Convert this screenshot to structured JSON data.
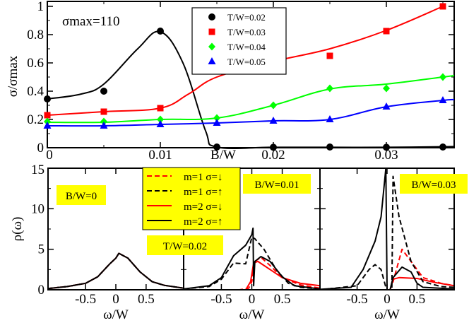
{
  "chart_data": [
    {
      "type": "scatter",
      "ylabel": "σ/σmax",
      "xlabel": "B/W",
      "annotation": "σmax=110",
      "xlim": [
        0,
        0.036
      ],
      "ylim": [
        0,
        1.03
      ],
      "xticks": [
        "0",
        "0.01",
        "0.02",
        "0.03"
      ],
      "xtick_values": [
        0,
        0.01,
        0.02,
        0.03
      ],
      "yticks": [
        "0",
        "0.2",
        "0.4",
        "0.6",
        "0.8",
        "1"
      ],
      "ytick_values": [
        0,
        0.2,
        0.4,
        0.6,
        0.8,
        1
      ],
      "legend_position": "top-center",
      "x": [
        0,
        0.005,
        0.01,
        0.015,
        0.02,
        0.025,
        0.03,
        0.035
      ],
      "series": [
        {
          "name": "T/W=0.02",
          "color": "#000000",
          "marker": "circle",
          "values": [
            0.345,
            0.4,
            0.825,
            0.005,
            0.003,
            0.005,
            0.003,
            0.005
          ],
          "fit_x": [
            0,
            0.003,
            0.005,
            0.008,
            0.01,
            0.012,
            0.014,
            0.015,
            0.02,
            0.025,
            0.03,
            0.036
          ],
          "fit": [
            0.345,
            0.38,
            0.45,
            0.7,
            0.82,
            0.6,
            0.12,
            0.005,
            0.003,
            0.003,
            0.003,
            0.008
          ]
        },
        {
          "name": "T/W=0.03",
          "color": "#ff0000",
          "marker": "square",
          "values": [
            0.23,
            0.255,
            0.28,
            0.57,
            0.61,
            0.65,
            0.825,
            1.0
          ],
          "fit_x": [
            0,
            0.005,
            0.01,
            0.0125,
            0.015,
            0.02,
            0.025,
            0.03,
            0.035
          ],
          "fit": [
            0.23,
            0.255,
            0.28,
            0.38,
            0.5,
            0.61,
            0.7,
            0.83,
            1.0
          ]
        },
        {
          "name": "T/W=0.04",
          "color": "#00ff00",
          "marker": "diamond",
          "values": [
            0.185,
            0.185,
            0.2,
            0.21,
            0.3,
            0.42,
            0.42,
            0.5
          ],
          "fit_x": [
            0,
            0.005,
            0.01,
            0.015,
            0.02,
            0.025,
            0.03,
            0.035,
            0.036
          ],
          "fit": [
            0.18,
            0.18,
            0.2,
            0.21,
            0.3,
            0.415,
            0.45,
            0.5,
            0.51
          ]
        },
        {
          "name": "T/W=0.05",
          "color": "#0000ff",
          "marker": "triangle",
          "values": [
            0.155,
            0.155,
            0.165,
            0.175,
            0.19,
            0.2,
            0.29,
            0.335
          ],
          "fit_x": [
            0,
            0.005,
            0.01,
            0.015,
            0.02,
            0.025,
            0.03,
            0.035,
            0.036
          ],
          "fit": [
            0.155,
            0.155,
            0.165,
            0.175,
            0.19,
            0.2,
            0.29,
            0.335,
            0.34
          ]
        }
      ]
    },
    {
      "type": "line",
      "ylabel": "ρ(ω)",
      "xlabel": "ω/W",
      "xlim": [
        -1.12,
        1.12
      ],
      "ylim": [
        0,
        15
      ],
      "xticks": [
        "-0.5",
        "0",
        "0.5"
      ],
      "xtick_values": [
        -0.5,
        0,
        0.5
      ],
      "yticks": [
        "0",
        "5",
        "10",
        "15"
      ],
      "ytick_values": [
        0,
        5,
        10,
        15
      ],
      "annotation": "T/W=0.02",
      "legend": [
        {
          "name": "m=1 σ=↓",
          "color": "#ff0000",
          "dash": true
        },
        {
          "name": "m=1 σ=↑",
          "color": "#000000",
          "dash": true
        },
        {
          "name": "m=2 σ=↓",
          "color": "#ff0000",
          "dash": false
        },
        {
          "name": "m=2 σ=↑",
          "color": "#000000",
          "dash": false
        }
      ],
      "panels": [
        {
          "label": "B/W=0",
          "series": [
            {
              "name": "m=1 σ=↓",
              "x": [
                -1.12,
                -0.8,
                -0.5,
                -0.3,
                -0.1,
                0,
                0.05,
                0.2,
                0.4,
                0.6,
                0.8,
                1.12
              ],
              "y": [
                0.15,
                0.4,
                0.8,
                1.6,
                3.2,
                3.9,
                4.5,
                3.9,
                2.2,
                1.0,
                0.55,
                0.2
              ]
            },
            {
              "name": "m=1 σ=↑",
              "x": [
                -1.12,
                -0.8,
                -0.5,
                -0.3,
                -0.1,
                0,
                0.05,
                0.2,
                0.4,
                0.6,
                0.8,
                1.12
              ],
              "y": [
                0.15,
                0.4,
                0.8,
                1.6,
                3.2,
                3.9,
                4.5,
                3.9,
                2.2,
                1.0,
                0.55,
                0.2
              ]
            },
            {
              "name": "m=2 σ=↓",
              "x": [
                -1.12,
                -0.8,
                -0.5,
                -0.3,
                -0.1,
                0,
                0.05,
                0.2,
                0.4,
                0.6,
                0.8,
                1.12
              ],
              "y": [
                0.15,
                0.4,
                0.8,
                1.6,
                3.2,
                3.9,
                4.5,
                3.9,
                2.2,
                1.0,
                0.55,
                0.2
              ]
            },
            {
              "name": "m=2 σ=↑",
              "x": [
                -1.12,
                -0.8,
                -0.5,
                -0.3,
                -0.1,
                0,
                0.05,
                0.2,
                0.4,
                0.6,
                0.8,
                1.12
              ],
              "y": [
                0.15,
                0.4,
                0.8,
                1.6,
                3.2,
                3.9,
                4.5,
                3.9,
                2.2,
                1.0,
                0.55,
                0.2
              ]
            }
          ]
        },
        {
          "label": "B/W=0.01",
          "series": [
            {
              "name": "m=1 σ=↓",
              "x": [
                -1.12,
                -0.2,
                -0.05,
                0,
                0.05,
                0.15,
                0.3,
                0.5,
                0.8,
                1.12
              ],
              "y": [
                0,
                0,
                0.2,
                1,
                3.5,
                4.0,
                3.0,
                1.5,
                0.6,
                0.2
              ]
            },
            {
              "name": "m=1 σ=↑",
              "x": [
                -1.12,
                -0.7,
                -0.5,
                -0.3,
                -0.1,
                0,
                0.05,
                0.2,
                0.4,
                0.6,
                0.8,
                1.12
              ],
              "y": [
                0.1,
                0.4,
                1.3,
                3.3,
                3.2,
                6.5,
                6.3,
                5.0,
                2.5,
                0.8,
                0.3,
                0.1
              ]
            },
            {
              "name": "m=2 σ=↓",
              "x": [
                -1.12,
                -0.1,
                -0.02,
                0.03,
                0.1,
                0.3,
                0.5,
                0.8,
                1.12
              ],
              "y": [
                0,
                0,
                1,
                3.3,
                3.5,
                2.5,
                1.5,
                0.8,
                0.5
              ]
            },
            {
              "name": "m=2 σ=↑",
              "x": [
                -1.12,
                -0.7,
                -0.5,
                -0.3,
                -0.1,
                0,
                0.02,
                0.03,
                0.05,
                0.15,
                0.3,
                0.5,
                0.7,
                1.12
              ],
              "y": [
                0.1,
                0.5,
                1.5,
                4.2,
                5.5,
                6.8,
                7.6,
                0.5,
                3.5,
                4.1,
                3.5,
                1.6,
                0.5,
                0.1
              ]
            }
          ]
        },
        {
          "label": "B/W=0.03",
          "series": [
            {
              "name": "m=1 σ=↓",
              "x": [
                -1.12,
                0.05,
                0.1,
                0.25,
                0.4,
                0.6,
                0.9,
                1.12
              ],
              "y": [
                0,
                0,
                1,
                5,
                3.5,
                1.5,
                0.8,
                0.5
              ]
            },
            {
              "name": "m=1 σ=↑",
              "x": [
                -1.12,
                -0.5,
                -0.3,
                -0.2,
                -0.1,
                -0.02,
                0,
                0.08,
                0.1,
                0.2,
                0.4,
                0.6,
                0.9,
                1.12
              ],
              "y": [
                0,
                0.5,
                2.5,
                3.1,
                2.5,
                0.3,
                0,
                0,
                14,
                9,
                3.5,
                1.0,
                0.4,
                0.3
              ]
            },
            {
              "name": "m=2 σ=↓",
              "x": [
                -1.12,
                0.05,
                0.1,
                0.2,
                0.5,
                0.8,
                1.12
              ],
              "y": [
                0,
                0,
                1.3,
                1.5,
                1.4,
                0.9,
                0.5
              ]
            },
            {
              "name": "m=2 σ=↑",
              "x": [
                -1.12,
                -0.6,
                -0.4,
                -0.2,
                -0.1,
                -0.02,
                0,
                0.05,
                0.1,
                0.25,
                0.4,
                0.5,
                0.6,
                1.12
              ],
              "y": [
                0.05,
                0.3,
                2.5,
                6,
                9,
                15,
                0,
                0,
                1.5,
                2.8,
                2.2,
                0.8,
                0.3,
                0.1
              ]
            }
          ]
        }
      ]
    }
  ]
}
